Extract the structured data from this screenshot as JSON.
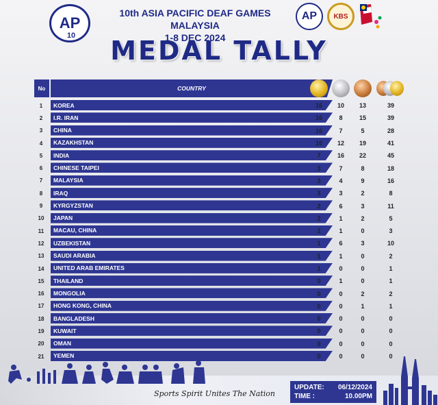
{
  "header": {
    "event_line1": "10th ASIA PACIFIC DEAF GAMES MALAYSIA",
    "event_line2": "1-8 DEC 2024",
    "logo_left_text": "AP",
    "logo_left_sub": "10",
    "logo_right1_text": "AP",
    "logo_right2_text": "KBS",
    "title": "MEDAL TALLY"
  },
  "table": {
    "col_no": "No",
    "col_country": "COUNTRY",
    "rows": [
      {
        "no": "1",
        "country": "KOREA",
        "gold": "16",
        "silver": "10",
        "bronze": "13",
        "total": "39"
      },
      {
        "no": "2",
        "country": "I.R. IRAN",
        "gold": "16",
        "silver": "8",
        "bronze": "15",
        "total": "39"
      },
      {
        "no": "3",
        "country": "CHINA",
        "gold": "16",
        "silver": "7",
        "bronze": "5",
        "total": "28"
      },
      {
        "no": "4",
        "country": "KAZAKHSTAN",
        "gold": "10",
        "silver": "12",
        "bronze": "19",
        "total": "41"
      },
      {
        "no": "5",
        "country": "INDIA",
        "gold": "7",
        "silver": "16",
        "bronze": "22",
        "total": "45"
      },
      {
        "no": "6",
        "country": "CHINESE TAIPEI",
        "gold": "3",
        "silver": "7",
        "bronze": "8",
        "total": "18"
      },
      {
        "no": "7",
        "country": "MALAYSIA",
        "gold": "3",
        "silver": "4",
        "bronze": "9",
        "total": "16"
      },
      {
        "no": "8",
        "country": "IRAQ",
        "gold": "3",
        "silver": "3",
        "bronze": "2",
        "total": "8"
      },
      {
        "no": "9",
        "country": "KYRGYZSTAN",
        "gold": "2",
        "silver": "6",
        "bronze": "3",
        "total": "11"
      },
      {
        "no": "10",
        "country": "JAPAN",
        "gold": "2",
        "silver": "1",
        "bronze": "2",
        "total": "5"
      },
      {
        "no": "11",
        "country": "MACAU, CHINA",
        "gold": "2",
        "silver": "1",
        "bronze": "0",
        "total": "3"
      },
      {
        "no": "12",
        "country": "UZBEKISTAN",
        "gold": "1",
        "silver": "6",
        "bronze": "3",
        "total": "10"
      },
      {
        "no": "13",
        "country": "SAUDI ARABIA",
        "gold": "1",
        "silver": "1",
        "bronze": "0",
        "total": "2"
      },
      {
        "no": "14",
        "country": "UNITED ARAB EMIRATES",
        "gold": "1",
        "silver": "0",
        "bronze": "0",
        "total": "1"
      },
      {
        "no": "15",
        "country": "THAILAND",
        "gold": "0",
        "silver": "1",
        "bronze": "0",
        "total": "1"
      },
      {
        "no": "16",
        "country": "MONGOLIA",
        "gold": "0",
        "silver": "0",
        "bronze": "2",
        "total": "2"
      },
      {
        "no": "17",
        "country": "HONG KONG, CHINA",
        "gold": "0",
        "silver": "0",
        "bronze": "1",
        "total": "1"
      },
      {
        "no": "18",
        "country": "BANGLADESH",
        "gold": "0",
        "silver": "0",
        "bronze": "0",
        "total": "0"
      },
      {
        "no": "19",
        "country": "KUWAIT",
        "gold": "0",
        "silver": "0",
        "bronze": "0",
        "total": "0"
      },
      {
        "no": "20",
        "country": "OMAN",
        "gold": "0",
        "silver": "0",
        "bronze": "0",
        "total": "0"
      },
      {
        "no": "21",
        "country": "YEMEN",
        "gold": "0",
        "silver": "0",
        "bronze": "0",
        "total": "0"
      }
    ]
  },
  "footer": {
    "slogan": "Sports Spirit Unites The Nation",
    "update_label": "UPDATE:",
    "update_value": "06/12/2024",
    "time_label": "TIME :",
    "time_value": "10.00PM"
  },
  "colors": {
    "brand_blue": "#2e3692",
    "title_blue": "#1f2a86",
    "gold": "#e2b21f",
    "silver": "#bdbdc2",
    "bronze": "#c77b3a"
  }
}
